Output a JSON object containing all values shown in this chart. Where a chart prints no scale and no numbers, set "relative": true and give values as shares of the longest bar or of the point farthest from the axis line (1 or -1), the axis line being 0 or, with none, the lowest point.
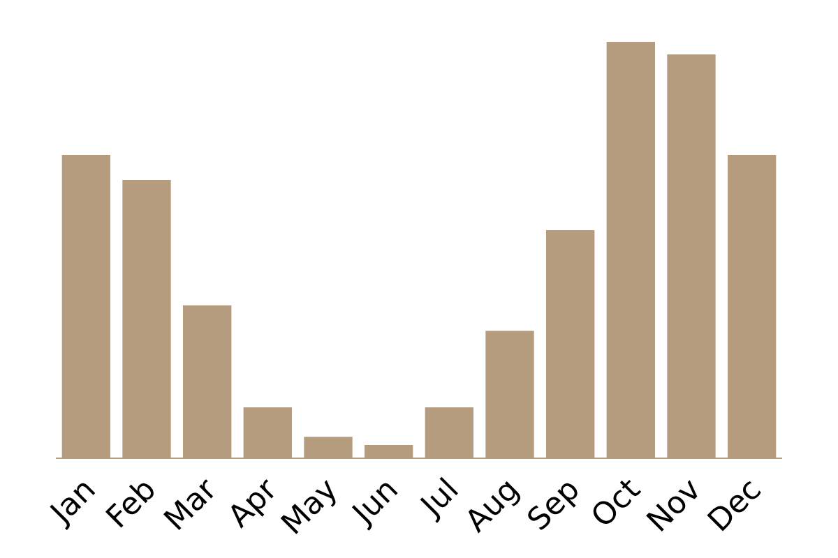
{
  "chart_data": {
    "type": "bar",
    "relative": true,
    "color": "#b59c7e",
    "categories": [
      "Jan",
      "Feb",
      "Mar",
      "Apr",
      "May",
      "Jun",
      "Jul",
      "Aug",
      "Sep",
      "Oct",
      "Nov",
      "Dec"
    ],
    "values": [
      0.728,
      0.668,
      0.366,
      0.121,
      0.05,
      0.03,
      0.121,
      0.305,
      0.547,
      1,
      0.97,
      0.728
    ],
    "grid": false
  }
}
